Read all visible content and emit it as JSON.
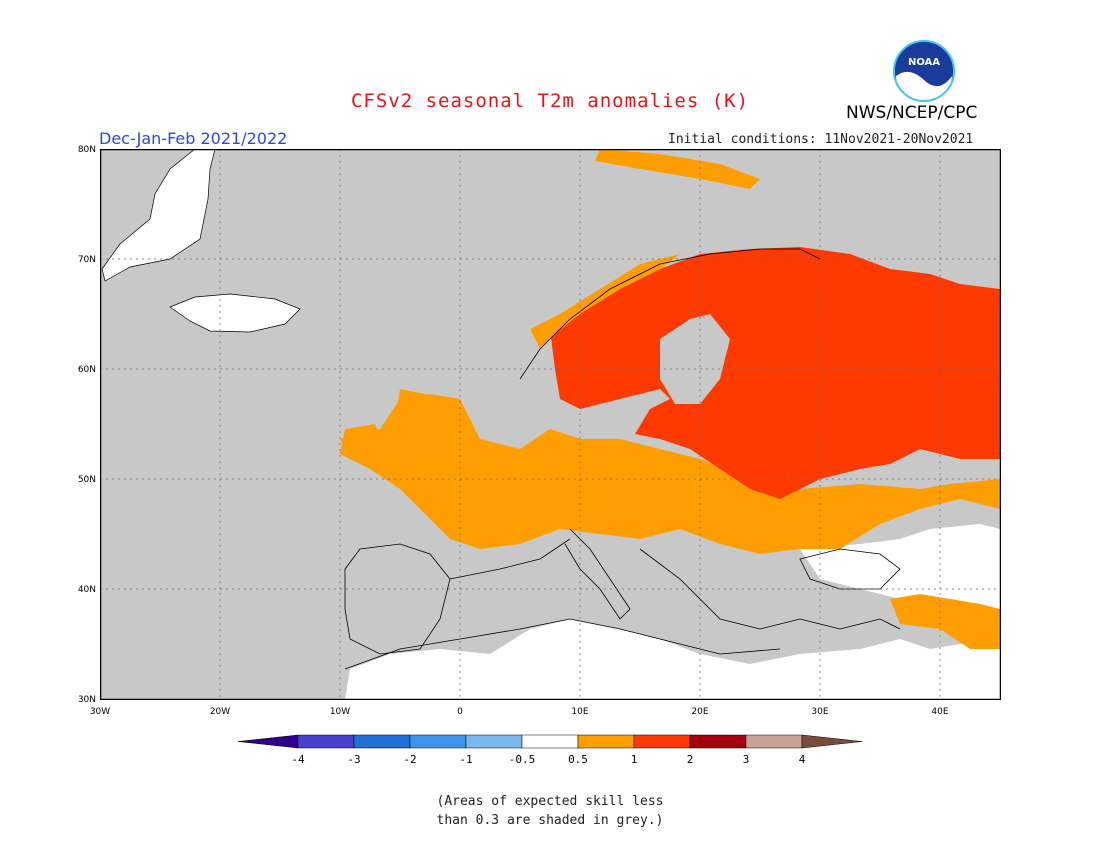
{
  "title": "CFSv2 seasonal T2m anomalies (K)",
  "org": "NWS/NCEP/CPC",
  "logo_text": "NOAA",
  "season": "Dec-Jan-Feb 2021/2022",
  "initial_conditions": "Initial conditions: 11Nov2021-20Nov2021",
  "map": {
    "lat_labels": [
      "80N",
      "70N",
      "60N",
      "50N",
      "40N",
      "30N"
    ],
    "lon_labels": [
      "30W",
      "20W",
      "10W",
      "0",
      "10E",
      "20E",
      "30E",
      "40E"
    ],
    "lon_range": [
      -30,
      45
    ],
    "lat_range": [
      30,
      80
    ],
    "ocean_color": "#c8c8c8",
    "grid": true
  },
  "colorbar": {
    "labels": [
      "-4",
      "-3",
      "-2",
      "-1",
      "-0.5",
      "0.5",
      "1",
      "2",
      "3",
      "4"
    ],
    "colors": [
      "#2d008c",
      "#4a3fcf",
      "#1f6fd6",
      "#3c95ea",
      "#79b9f0",
      "#ffffff",
      "#ff9e00",
      "#ff3a00",
      "#a5000e",
      "#c8a294",
      "#7b4c3e"
    ]
  },
  "note": [
    "(Areas of expected skill less",
    "than 0.3 are shaded in grey.)"
  ]
}
